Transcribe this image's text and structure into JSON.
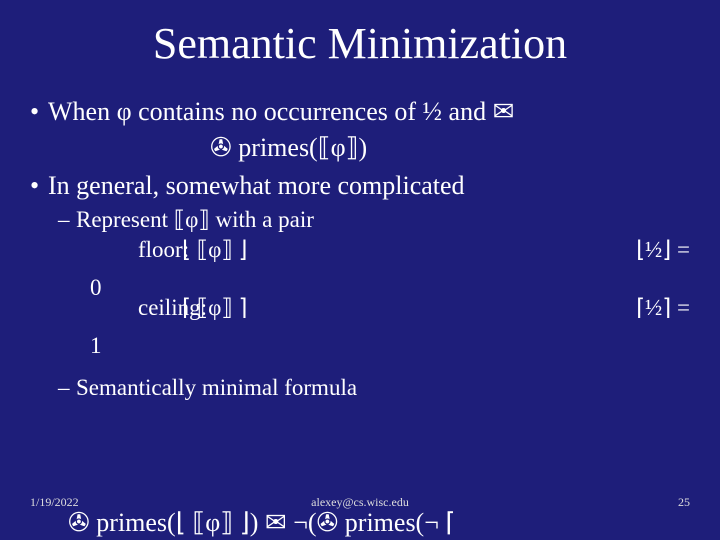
{
  "title": "Semantic Minimization",
  "b1a_pre": "When φ contains no occurrences of ½ and ",
  "b1a_sym1": "✉",
  "line2_sym": "✇",
  "line2_text": " primes(⟦φ⟧)",
  "b1b": "In general, somewhat more complicated",
  "b2a": "Represent ⟦φ⟧ with a pair",
  "floor_label": "0",
  "floor_kind": "floor:",
  "floor_formula": "⌊ ⟦φ⟧ ⌋",
  "floor_right": "⌊½⌋ =",
  "ceil_label": "1",
  "ceil_kind": "ceiling:",
  "ceil_formula": "⌈ ⟦φ⟧ ⌉",
  "ceil_right": "⌈½⌉ =",
  "b2b": "Semantically minimal formula",
  "bottom": "✇ primes(⌊ ⟦φ⟧ ⌋) ✉ ¬(✇ primes(¬ ⌈",
  "footer_date": "1/19/2022",
  "footer_email": "alexey@cs.wisc.edu",
  "footer_page": "25",
  "colors": {
    "background": "#1e1e7a",
    "text": "#ffffff",
    "footer": "#dddddd"
  }
}
